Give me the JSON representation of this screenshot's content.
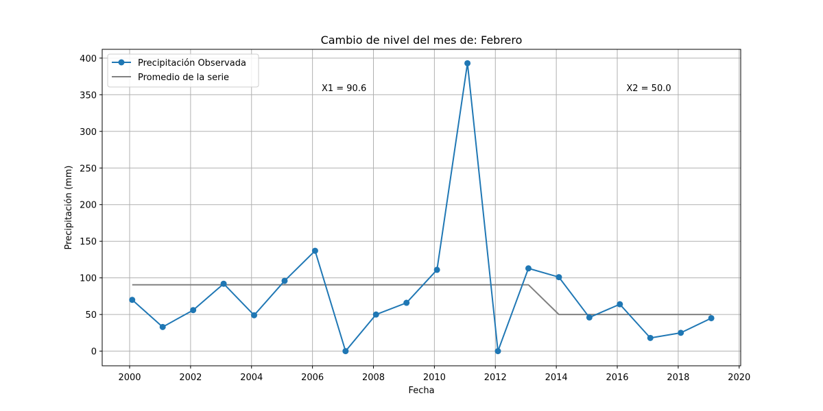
{
  "chart_data": {
    "type": "line",
    "title": "Cambio de nivel del mes de: Febrero",
    "xlabel": "Fecha",
    "ylabel": "Precipitación (mm)",
    "xlim": [
      1999.1,
      2020.05
    ],
    "ylim": [
      -20,
      412
    ],
    "x_ticks": [
      2000,
      2002,
      2004,
      2006,
      2008,
      2010,
      2012,
      2014,
      2016,
      2018,
      2020
    ],
    "y_ticks": [
      0,
      50,
      100,
      150,
      200,
      250,
      300,
      350,
      400
    ],
    "grid": true,
    "legend_position": "top-left",
    "series": [
      {
        "name": "Precipitación Observada",
        "color": "#1f77b4",
        "marker": "circle",
        "x": [
          "2000-02-01",
          "2001-02-01",
          "2002-02-01",
          "2003-02-01",
          "2004-02-01",
          "2005-02-01",
          "2006-02-01",
          "2007-02-01",
          "2008-02-01",
          "2009-02-01",
          "2010-02-01",
          "2011-02-01",
          "2012-02-01",
          "2013-02-01",
          "2014-02-01",
          "2015-02-01",
          "2016-02-01",
          "2017-02-01",
          "2018-02-01",
          "2019-02-01"
        ],
        "values": [
          70,
          33,
          56,
          92,
          49,
          96,
          137,
          0,
          50,
          66,
          111,
          393,
          0,
          113,
          101,
          46,
          64,
          18,
          25,
          45
        ]
      },
      {
        "name": "Promedio de la serie",
        "color": "#808080",
        "marker": "none",
        "x": [
          "2000-02-01",
          "2013-02-01",
          "2014-02-01",
          "2019-02-01"
        ],
        "values": [
          90.6,
          90.6,
          50.0,
          50.0
        ]
      }
    ],
    "annotations": [
      {
        "text": "X1 = 90.6",
        "x": 2006.3,
        "y": 355
      },
      {
        "text": "X2 = 50.0",
        "x": 2016.3,
        "y": 355
      }
    ]
  }
}
